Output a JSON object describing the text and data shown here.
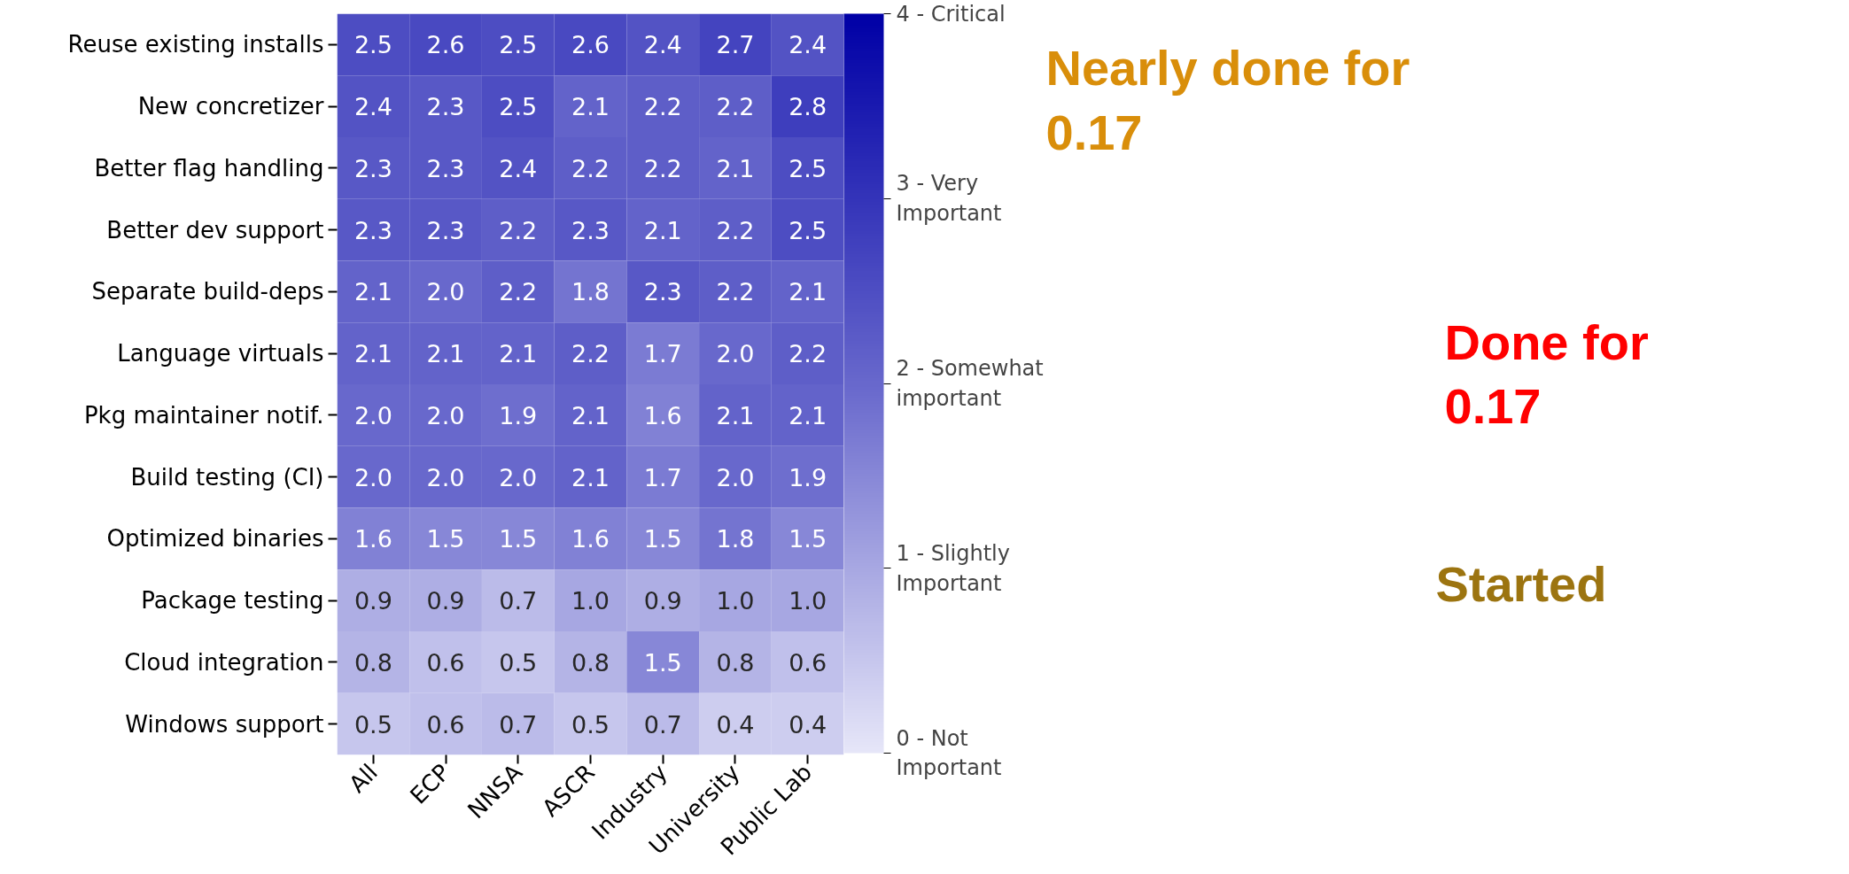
{
  "chart_data": {
    "type": "heatmap",
    "categories": [
      "All",
      "ECP",
      "NNSA",
      "ASCR",
      "Industry",
      "University",
      "Public Lab"
    ],
    "y_categories": [
      "Reuse existing installs",
      "New concretizer",
      "Better flag handling",
      "Better dev support",
      "Separate build-deps",
      "Language virtuals",
      "Pkg maintainer notif.",
      "Build testing (CI)",
      "Optimized binaries",
      "Package testing",
      "Cloud integration",
      "Windows support"
    ],
    "cells": [
      [
        2.5,
        2.6,
        2.5,
        2.6,
        2.4,
        2.7,
        2.4
      ],
      [
        2.4,
        2.3,
        2.5,
        2.1,
        2.2,
        2.2,
        2.8
      ],
      [
        2.3,
        2.3,
        2.4,
        2.2,
        2.2,
        2.1,
        2.5
      ],
      [
        2.3,
        2.3,
        2.2,
        2.3,
        2.1,
        2.2,
        2.5
      ],
      [
        2.1,
        2.0,
        2.2,
        1.8,
        2.3,
        2.2,
        2.1
      ],
      [
        2.1,
        2.1,
        2.1,
        2.2,
        1.7,
        2.0,
        2.2
      ],
      [
        2.0,
        2.0,
        1.9,
        2.1,
        1.6,
        2.1,
        2.1
      ],
      [
        2.0,
        2.0,
        2.0,
        2.1,
        1.7,
        2.0,
        1.9
      ],
      [
        1.6,
        1.5,
        1.5,
        1.6,
        1.5,
        1.8,
        1.5
      ],
      [
        0.9,
        0.9,
        0.7,
        1.0,
        0.9,
        1.0,
        1.0
      ],
      [
        0.8,
        0.6,
        0.5,
        0.8,
        1.5,
        0.8,
        0.6
      ],
      [
        0.5,
        0.6,
        0.7,
        0.5,
        0.7,
        0.4,
        0.4
      ]
    ],
    "cell_labels": [
      [
        "2.5",
        "2.6",
        "2.5",
        "2.6",
        "2.4",
        "2.7",
        "2.4"
      ],
      [
        "2.4",
        "2.3",
        "2.5",
        "2.1",
        "2.2",
        "2.2",
        "2.8"
      ],
      [
        "2.3",
        "2.3",
        "2.4",
        "2.2",
        "2.2",
        "2.1",
        "2.5"
      ],
      [
        "2.3",
        "2.3",
        "2.2",
        "2.3",
        "2.1",
        "2.2",
        "2.5"
      ],
      [
        "2.1",
        "2.0",
        "2.2",
        "1.8",
        "2.3",
        "2.2",
        "2.1"
      ],
      [
        "2.1",
        "2.1",
        "2.1",
        "2.2",
        "1.7",
        "2.0",
        "2.2"
      ],
      [
        "2.0",
        "2.0",
        "1.9",
        "2.1",
        "1.6",
        "2.1",
        "2.1"
      ],
      [
        "2.0",
        "2.0",
        "2.0",
        "2.1",
        "1.7",
        "2.0",
        "1.9"
      ],
      [
        "1.6",
        "1.5",
        "1.5",
        "1.6",
        "1.5",
        "1.8",
        "1.5"
      ],
      [
        "0.9",
        "0.9",
        "0.7",
        "1.0",
        "0.9",
        "1.0",
        "1.0"
      ],
      [
        "0.8",
        "0.6",
        "0.5",
        "0.8",
        "1.5",
        "0.8",
        "0.6"
      ],
      [
        "0.5",
        "0.6",
        "0.7",
        "0.5",
        "0.7",
        "0.4",
        "0.4"
      ]
    ],
    "clim": [
      0,
      4
    ],
    "cticks": [
      {
        "value": 0,
        "label": "0 - Not\nImportant"
      },
      {
        "value": 1,
        "label": "1 - Slightly\nImportant"
      },
      {
        "value": 2,
        "label": "2 - Somewhat\nimportant"
      },
      {
        "value": 3,
        "label": "3 - Very\nImportant"
      },
      {
        "value": 4,
        "label": "4 - Critical"
      }
    ],
    "annotations": [
      "Nearly done for\n0.17",
      "Done for\n0.17",
      "Started"
    ]
  }
}
